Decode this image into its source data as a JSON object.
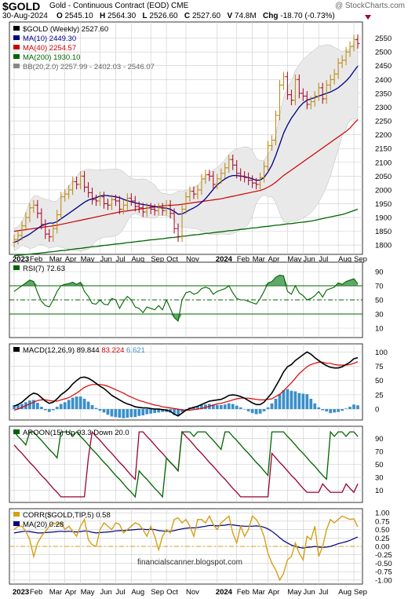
{
  "header": {
    "ticker": "$GOLD",
    "subtitle": "Gold - Continuous Contract (EOD)  CME",
    "brand": "@ StockCharts.com",
    "date": "30-Aug-2024",
    "open_label": "O",
    "open": "2545.10",
    "high_label": "H",
    "high": "2564.30",
    "low_label": "L",
    "low": "2526.60",
    "close_label": "C",
    "close": "2527.60",
    "volume_label": "V",
    "volume": "74.8M",
    "change_label": "Chg",
    "change": "-18.70 (-0.73%)"
  },
  "watermark": "financialscanner.blogspot.com",
  "colors": {
    "up": "#b8860b",
    "down": "#a50021",
    "ma10": "#00008b",
    "ma40": "#cc0000",
    "ma200": "#006400",
    "band": "#e9e9e9",
    "grid": "#cccccc",
    "rsi": "#006400",
    "macd": "#000000",
    "macd_signal": "#dd0000",
    "macd_hist": "#3a8fc8",
    "aroon_up": "#006400",
    "aroon_down": "#990033",
    "corr": "#d4a017",
    "corr_ma": "#000080"
  },
  "chart_data": [
    {
      "type": "candlestick",
      "legend": [
        {
          "key": "price",
          "text": "$GOLD (Weekly) 2527.60"
        },
        {
          "key": "ma10",
          "text": "MA(10) 2449.30"
        },
        {
          "key": "ma40",
          "text": "MA(40) 2254.57"
        },
        {
          "key": "ma200",
          "text": "MA(200) 1930.10"
        },
        {
          "key": "bb",
          "text": "BB(20,2.0) 2257.99 - 2402.03 - 2546.07"
        }
      ],
      "ylim": [
        1775,
        2600
      ],
      "yticks": [
        1800,
        1850,
        1900,
        1950,
        2000,
        2050,
        2100,
        2150,
        2200,
        2250,
        2300,
        2350,
        2400,
        2450,
        2500,
        2550
      ],
      "close": [
        1820,
        1835,
        1870,
        1900,
        1935,
        1945,
        1915,
        1875,
        1840,
        1830,
        1860,
        1910,
        1975,
        1985,
        2000,
        2030,
        2020,
        2050,
        2010,
        1990,
        1965,
        1960,
        1975,
        1950,
        1945,
        1965,
        1960,
        1930,
        1945,
        1970,
        1960,
        1940,
        1935,
        1920,
        1935,
        1930,
        1925,
        1935,
        1925,
        1945,
        1915,
        1860,
        1830,
        1930,
        1975,
        1995,
        1985,
        2000,
        2040,
        2055,
        2050,
        2020,
        2040,
        2060,
        2080,
        2110,
        2090,
        2060,
        2050,
        2045,
        2035,
        2025,
        2020,
        2045,
        2085,
        2160,
        2180,
        2270,
        2380,
        2410,
        2345,
        2325,
        2400,
        2350,
        2340,
        2310,
        2320,
        2340,
        2370,
        2330,
        2380,
        2400,
        2420,
        2460,
        2470,
        2500,
        2520,
        2545,
        2530
      ],
      "ma10": [
        1810,
        1815,
        1825,
        1832,
        1840,
        1850,
        1860,
        1870,
        1875,
        1880,
        1880,
        1885,
        1895,
        1905,
        1915,
        1925,
        1935,
        1945,
        1955,
        1963,
        1968,
        1972,
        1978,
        1980,
        1979,
        1977,
        1975,
        1972,
        1966,
        1961,
        1957,
        1953,
        1950,
        1947,
        1945,
        1942,
        1940,
        1937,
        1935,
        1934,
        1930,
        1922,
        1912,
        1913,
        1920,
        1928,
        1935,
        1943,
        1955,
        1968,
        1985,
        2002,
        2018,
        2030,
        2040,
        2048,
        2052,
        2052,
        2050,
        2048,
        2045,
        2040,
        2035,
        2036,
        2045,
        2065,
        2090,
        2125,
        2165,
        2205,
        2235,
        2260,
        2280,
        2300,
        2315,
        2325,
        2330,
        2335,
        2340,
        2345,
        2350,
        2355,
        2362,
        2370,
        2382,
        2395,
        2410,
        2430,
        2449
      ],
      "ma40": [
        1850,
        1852,
        1854,
        1856,
        1858,
        1860,
        1862,
        1864,
        1866,
        1868,
        1870,
        1872,
        1875,
        1878,
        1881,
        1884,
        1887,
        1890,
        1893,
        1896,
        1899,
        1902,
        1905,
        1908,
        1911,
        1914,
        1917,
        1920,
        1922,
        1924,
        1926,
        1928,
        1930,
        1932,
        1934,
        1936,
        1938,
        1940,
        1942,
        1944,
        1944,
        1945,
        1946,
        1948,
        1950,
        1952,
        1954,
        1956,
        1958,
        1960,
        1962,
        1964,
        1966,
        1968,
        1971,
        1974,
        1977,
        1980,
        1983,
        1986,
        1989,
        1992,
        1995,
        1998,
        2003,
        2010,
        2018,
        2028,
        2040,
        2052,
        2062,
        2072,
        2082,
        2092,
        2102,
        2112,
        2122,
        2132,
        2142,
        2152,
        2162,
        2172,
        2182,
        2192,
        2202,
        2212,
        2224,
        2240,
        2255
      ],
      "ma200": [
        1762,
        1763,
        1764,
        1766,
        1767,
        1769,
        1770,
        1772,
        1773,
        1775,
        1776,
        1778,
        1780,
        1781,
        1783,
        1785,
        1787,
        1788,
        1790,
        1792,
        1794,
        1795,
        1797,
        1799,
        1800,
        1802,
        1804,
        1805,
        1807,
        1809,
        1810,
        1812,
        1814,
        1815,
        1817,
        1819,
        1820,
        1822,
        1823,
        1825,
        1827,
        1828,
        1830,
        1832,
        1833,
        1835,
        1837,
        1838,
        1840,
        1842,
        1843,
        1845,
        1847,
        1848,
        1850,
        1852,
        1853,
        1855,
        1857,
        1858,
        1860,
        1862,
        1863,
        1865,
        1867,
        1868,
        1870,
        1872,
        1873,
        1875,
        1877,
        1878,
        1880,
        1882,
        1883,
        1885,
        1887,
        1890,
        1893,
        1896,
        1899,
        1902,
        1905,
        1908,
        1911,
        1915,
        1920,
        1925,
        1930
      ]
    },
    {
      "type": "line",
      "legend": "RSI(7) 72.63",
      "ylim": [
        0,
        100
      ],
      "yticks": [
        10,
        30,
        50,
        70,
        90
      ],
      "guides": [
        30,
        50,
        70
      ],
      "values": [
        62,
        66,
        70,
        74,
        78,
        76,
        60,
        48,
        42,
        40,
        50,
        62,
        70,
        72,
        73,
        75,
        72,
        75,
        62,
        55,
        45,
        44,
        50,
        44,
        43,
        52,
        50,
        38,
        48,
        55,
        50,
        40,
        38,
        32,
        40,
        38,
        36,
        42,
        36,
        50,
        38,
        25,
        20,
        50,
        60,
        62,
        58,
        60,
        66,
        68,
        66,
        58,
        62,
        64,
        66,
        70,
        60,
        52,
        50,
        50,
        48,
        46,
        44,
        52,
        62,
        74,
        76,
        82,
        85,
        84,
        62,
        58,
        70,
        60,
        56,
        50,
        52,
        56,
        62,
        54,
        64,
        66,
        68,
        74,
        72,
        76,
        78,
        80,
        73
      ]
    },
    {
      "type": "line",
      "legend": {
        "macd": "MACD(12,26,9) 89.844",
        "signal": "83.224",
        "hist": "6.621"
      },
      "ylim": [
        -15,
        110
      ],
      "yticks": [
        0,
        25,
        50,
        75,
        100
      ],
      "macd": [
        5,
        8,
        12,
        18,
        24,
        28,
        26,
        20,
        14,
        10,
        12,
        18,
        25,
        30,
        36,
        44,
        50,
        55,
        56,
        54,
        50,
        45,
        40,
        36,
        30,
        24,
        20,
        16,
        12,
        9,
        7,
        4,
        3,
        2,
        2,
        1,
        0,
        0,
        -1,
        -2,
        -4,
        -9,
        -12,
        -7,
        -2,
        1,
        3,
        5,
        8,
        11,
        14,
        15,
        16,
        17,
        20,
        24,
        25,
        24,
        22,
        19,
        15,
        11,
        8,
        8,
        12,
        20,
        28,
        40,
        52,
        65,
        74,
        78,
        85,
        90,
        95,
        100,
        96,
        90,
        85,
        80,
        76,
        73,
        72,
        72,
        74,
        78,
        82,
        88,
        90
      ],
      "signal": [
        -2,
        0,
        3,
        6,
        9,
        12,
        15,
        16,
        16,
        15,
        14,
        14,
        16,
        18,
        20,
        24,
        28,
        33,
        38,
        41,
        43,
        43,
        43,
        42,
        40,
        37,
        34,
        31,
        28,
        24,
        21,
        18,
        15,
        13,
        11,
        9,
        7,
        6,
        4,
        3,
        2,
        1,
        0,
        -2,
        -2,
        -2,
        -1,
        0,
        1,
        3,
        5,
        7,
        9,
        10,
        12,
        14,
        16,
        18,
        19,
        19,
        19,
        18,
        17,
        16,
        16,
        17,
        18,
        22,
        26,
        32,
        39,
        46,
        54,
        62,
        68,
        74,
        78,
        80,
        82,
        82,
        80,
        80,
        78,
        77,
        77,
        77,
        78,
        80,
        83
      ],
      "hist": [
        7,
        8,
        9,
        12,
        15,
        16,
        11,
        4,
        -2,
        -5,
        -2,
        4,
        9,
        12,
        16,
        20,
        22,
        22,
        18,
        13,
        7,
        2,
        -3,
        -6,
        -10,
        -13,
        -14,
        -15,
        -16,
        -15,
        -14,
        -14,
        -12,
        -11,
        -9,
        -8,
        -7,
        -6,
        -5,
        -5,
        -6,
        -10,
        -12,
        -5,
        0,
        3,
        4,
        5,
        7,
        8,
        9,
        8,
        7,
        7,
        8,
        10,
        9,
        6,
        3,
        0,
        -4,
        -7,
        -9,
        -8,
        -4,
        3,
        10,
        18,
        26,
        33,
        35,
        32,
        31,
        28,
        27,
        26,
        18,
        10,
        3,
        -2,
        -4,
        -7,
        -6,
        -5,
        -3,
        1,
        4,
        8,
        6.6
      ]
    },
    {
      "type": "line",
      "legend": "AROON(15)  Up 93.3  Down 20.0",
      "ylim": [
        -5,
        105
      ],
      "yticks": [
        10,
        30,
        50,
        70,
        90
      ],
      "up": [
        100,
        93,
        87,
        80,
        100,
        100,
        93,
        87,
        80,
        73,
        67,
        60,
        100,
        100,
        100,
        93,
        100,
        93,
        87,
        80,
        73,
        67,
        60,
        53,
        47,
        40,
        33,
        27,
        20,
        13,
        7,
        0,
        40,
        33,
        27,
        20,
        13,
        7,
        0,
        60,
        53,
        47,
        40,
        100,
        100,
        100,
        93,
        100,
        100,
        100,
        93,
        87,
        80,
        73,
        100,
        100,
        93,
        87,
        80,
        73,
        67,
        60,
        53,
        47,
        40,
        33,
        100,
        100,
        100,
        100,
        93,
        87,
        80,
        73,
        67,
        60,
        53,
        47,
        40,
        33,
        27,
        100,
        93,
        100,
        100,
        93,
        100,
        100,
        93
      ],
      "down": [
        80,
        73,
        67,
        60,
        53,
        47,
        40,
        33,
        27,
        20,
        13,
        7,
        0,
        0,
        0,
        0,
        0,
        0,
        0,
        60,
        100,
        93,
        87,
        80,
        73,
        67,
        60,
        53,
        47,
        40,
        33,
        27,
        100,
        100,
        93,
        87,
        80,
        73,
        67,
        60,
        53,
        47,
        40,
        100,
        93,
        87,
        80,
        73,
        67,
        60,
        53,
        47,
        40,
        33,
        27,
        20,
        13,
        7,
        0,
        0,
        0,
        0,
        0,
        0,
        0,
        0,
        67,
        60,
        53,
        47,
        40,
        33,
        27,
        20,
        13,
        7,
        7,
        7,
        7,
        20,
        13,
        7,
        7,
        7,
        7,
        20,
        13,
        7,
        20
      ]
    },
    {
      "type": "line",
      "legend": {
        "corr": "CORR($GOLD,TIP,5) 0.58",
        "ma": "MA(20) 0.28"
      },
      "ylim": [
        -1.05,
        1.05
      ],
      "yticks": [
        1.0,
        0.75,
        0.5,
        0.25,
        0.0,
        -0.25,
        -0.5,
        -0.75,
        -1.0
      ],
      "corr": [
        0.5,
        0.6,
        0.6,
        0.45,
        0.2,
        -0.3,
        0.1,
        0.3,
        0.45,
        0.6,
        0.7,
        0.65,
        0.7,
        0.5,
        0.6,
        0.45,
        0.3,
        0.6,
        0.8,
        0.2,
        0.05,
        0.0,
        0.5,
        0.7,
        0.6,
        0.5,
        0.7,
        0.65,
        0.4,
        0.5,
        0.6,
        0.7,
        0.65,
        0.5,
        0.3,
        0.6,
        0.3,
        -0.1,
        0.3,
        0.5,
        0.4,
        0.8,
        0.85,
        0.7,
        0.8,
        0.6,
        0.3,
        0.8,
        0.8,
        0.7,
        0.9,
        0.65,
        0.5,
        0.7,
        0.8,
        0.9,
        0.4,
        0.1,
        0.6,
        0.3,
        0.5,
        0.9,
        0.8,
        0.6,
        0.3,
        -0.2,
        -0.5,
        -0.7,
        -1.0,
        -0.8,
        -0.4,
        -0.3,
        0.1,
        -0.2,
        -0.4,
        0.3,
        0.2,
        0.6,
        -0.3,
        0.0,
        0.5,
        0.8,
        0.7,
        0.8,
        0.9,
        0.85,
        0.8,
        0.82,
        0.58
      ],
      "ma": [
        0.4,
        0.42,
        0.44,
        0.45,
        0.44,
        0.42,
        0.4,
        0.4,
        0.41,
        0.42,
        0.43,
        0.44,
        0.45,
        0.44,
        0.45,
        0.44,
        0.43,
        0.44,
        0.46,
        0.45,
        0.42,
        0.4,
        0.41,
        0.42,
        0.43,
        0.44,
        0.46,
        0.47,
        0.47,
        0.48,
        0.49,
        0.5,
        0.51,
        0.51,
        0.5,
        0.51,
        0.5,
        0.47,
        0.46,
        0.45,
        0.45,
        0.47,
        0.5,
        0.52,
        0.54,
        0.55,
        0.55,
        0.56,
        0.58,
        0.6,
        0.62,
        0.62,
        0.61,
        0.62,
        0.63,
        0.65,
        0.64,
        0.62,
        0.61,
        0.6,
        0.6,
        0.6,
        0.61,
        0.6,
        0.57,
        0.52,
        0.45,
        0.36,
        0.26,
        0.17,
        0.1,
        0.04,
        0.0,
        -0.03,
        -0.05,
        -0.03,
        -0.02,
        0.0,
        -0.02,
        -0.03,
        -0.02,
        0.0,
        0.04,
        0.08,
        0.11,
        0.14,
        0.18,
        0.23,
        0.28
      ]
    }
  ],
  "x_axis_top": [
    "2023",
    "Feb",
    "Mar",
    "Apr",
    "May",
    "Jun",
    "Jul",
    "Aug",
    "Sep",
    "Oct",
    "Nov",
    "2024",
    "Feb",
    "Mar",
    "Apr",
    "May",
    "Jun",
    "Jul",
    "Aug",
    "Sep"
  ],
  "x_axis_bottom": [
    "2023",
    "Feb",
    "Mar",
    "Apr",
    "May",
    "Jun",
    "Jul",
    "Aug",
    "Sep",
    "Oct",
    "Nov",
    "2024",
    "Feb",
    "Mar",
    "Apr",
    "May",
    "Jun",
    "Jul",
    "Aug",
    "Sep"
  ]
}
